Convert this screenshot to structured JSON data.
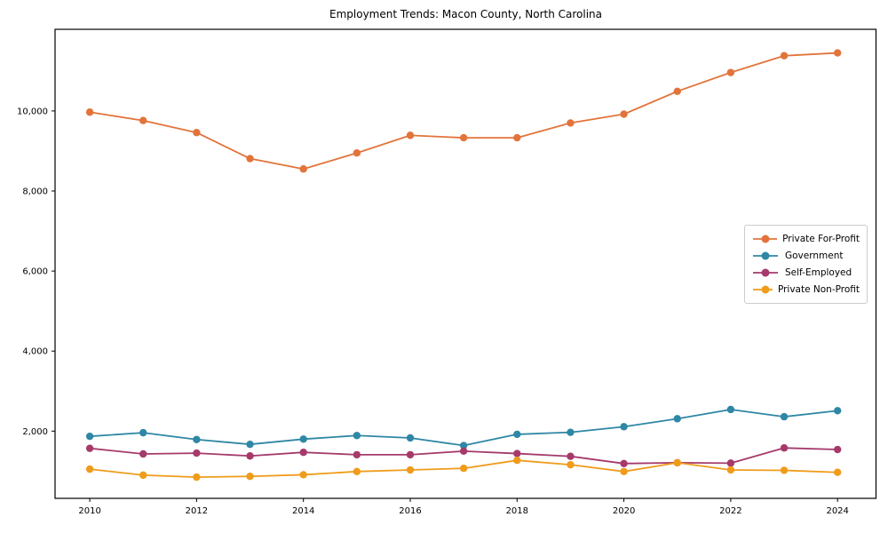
{
  "chart_data": {
    "type": "line",
    "title": "Employment Trends: Macon County, North Carolina",
    "xlabel": "",
    "ylabel": "",
    "x": [
      2010,
      2011,
      2012,
      2013,
      2014,
      2015,
      2016,
      2017,
      2018,
      2019,
      2020,
      2021,
      2022,
      2023,
      2024
    ],
    "series": [
      {
        "name": "Private For-Profit",
        "color": "#E2743B",
        "values": [
          9970,
          9760,
          9460,
          8810,
          8550,
          8950,
          9390,
          9330,
          9330,
          9700,
          9920,
          10490,
          10960,
          11380,
          11450
        ]
      },
      {
        "name": "Government",
        "color": "#2E87A5",
        "values": [
          1870,
          1960,
          1790,
          1670,
          1800,
          1890,
          1830,
          1640,
          1920,
          1970,
          2110,
          2310,
          2540,
          2360,
          2510
        ]
      },
      {
        "name": "Self-Employed",
        "color": "#A53A6B",
        "values": [
          1570,
          1430,
          1450,
          1380,
          1470,
          1410,
          1410,
          1500,
          1440,
          1370,
          1190,
          1210,
          1200,
          1580,
          1540
        ]
      },
      {
        "name": "Private Non-Profit",
        "color": "#EF9C1B",
        "values": [
          1050,
          900,
          850,
          870,
          910,
          990,
          1030,
          1070,
          1270,
          1160,
          990,
          1210,
          1030,
          1020,
          970
        ]
      }
    ],
    "xticks": [
      2010,
      2012,
      2014,
      2016,
      2018,
      2020,
      2022,
      2024
    ],
    "xtick_labels": [
      "2010",
      "2012",
      "2014",
      "2016",
      "2018",
      "2020",
      "2022",
      "2024"
    ],
    "yticks": [
      2000,
      4000,
      6000,
      8000,
      10000
    ],
    "ytick_labels": [
      "2,000",
      "4,000",
      "6,000",
      "8,000",
      "10,000"
    ],
    "xlim": [
      2009.35,
      2024.72
    ],
    "ylim": [
      320,
      12040
    ],
    "grid": false,
    "legend_position": "center right",
    "axis_color": "#000000"
  }
}
